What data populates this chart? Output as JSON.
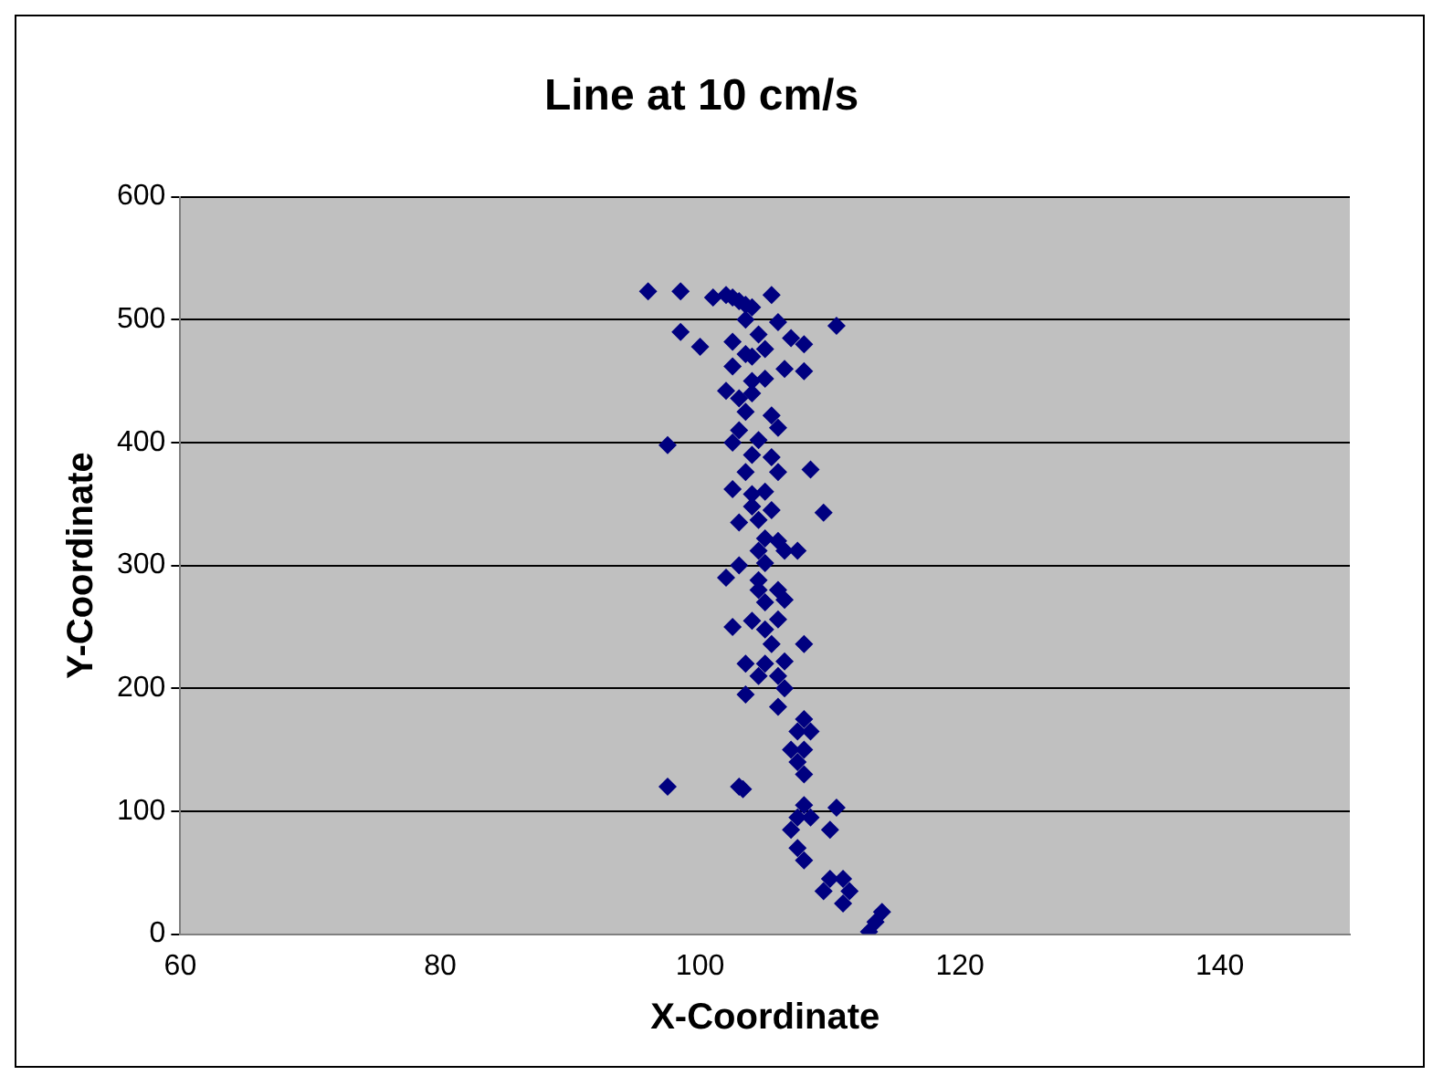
{
  "chart_data": {
    "type": "scatter",
    "title": "Line at 10 cm/s",
    "xlabel": "X-Coordinate",
    "ylabel": "Y-Coordinate",
    "xlim": [
      60,
      150
    ],
    "xticks": [
      60,
      80,
      100,
      120,
      140
    ],
    "ylim": [
      0,
      600
    ],
    "yticks": [
      0,
      100,
      200,
      300,
      400,
      500,
      600
    ],
    "grid": "y",
    "marker": "diamond",
    "legend": false,
    "series": [
      {
        "color": "#000080",
        "x": [
          96,
          98.5,
          101,
          102,
          102.5,
          103,
          103.5,
          104,
          105.5,
          103.5,
          106,
          110.5,
          98.5,
          104.5,
          107,
          102.5,
          100,
          105,
          108,
          104,
          103.5,
          102.5,
          106.5,
          108,
          104,
          105,
          102,
          104,
          103,
          103.5,
          105.5,
          103,
          106,
          97.5,
          102.5,
          104.5,
          104,
          105.5,
          103.5,
          106,
          108.5,
          102.5,
          105,
          104,
          104,
          105.5,
          109.5,
          103,
          104.5,
          105,
          106,
          104.5,
          106.5,
          107.5,
          103,
          105,
          102,
          104.5,
          104.5,
          106,
          105,
          106.5,
          104,
          106,
          102.5,
          105,
          105.5,
          108,
          103.5,
          105,
          106.5,
          104.5,
          106,
          106.5,
          103.5,
          106,
          108,
          107.5,
          108.5,
          107,
          108,
          107.5,
          108,
          97.5,
          103,
          103.3,
          108,
          110.5,
          107.5,
          108.5,
          107,
          110,
          107.5,
          108,
          110,
          111,
          109.5,
          111.5,
          111,
          114,
          113.5,
          113
        ],
        "values": [
          523,
          523,
          518,
          520,
          518,
          515,
          512,
          510,
          520,
          500,
          498,
          495,
          490,
          488,
          485,
          482,
          478,
          476,
          480,
          470,
          472,
          462,
          460,
          458,
          450,
          452,
          442,
          440,
          436,
          425,
          422,
          410,
          412,
          398,
          400,
          402,
          390,
          388,
          376,
          376,
          378,
          362,
          360,
          358,
          348,
          345,
          343,
          335,
          337,
          322,
          320,
          312,
          312,
          312,
          300,
          302,
          290,
          288,
          280,
          280,
          270,
          272,
          255,
          256,
          250,
          248,
          236,
          236,
          220,
          220,
          222,
          210,
          210,
          200,
          195,
          185,
          175,
          165,
          165,
          150,
          150,
          140,
          130,
          120,
          120,
          118,
          105,
          103,
          95,
          95,
          85,
          85,
          70,
          60,
          45,
          45,
          35,
          35,
          25,
          18,
          10,
          2
        ]
      }
    ]
  }
}
